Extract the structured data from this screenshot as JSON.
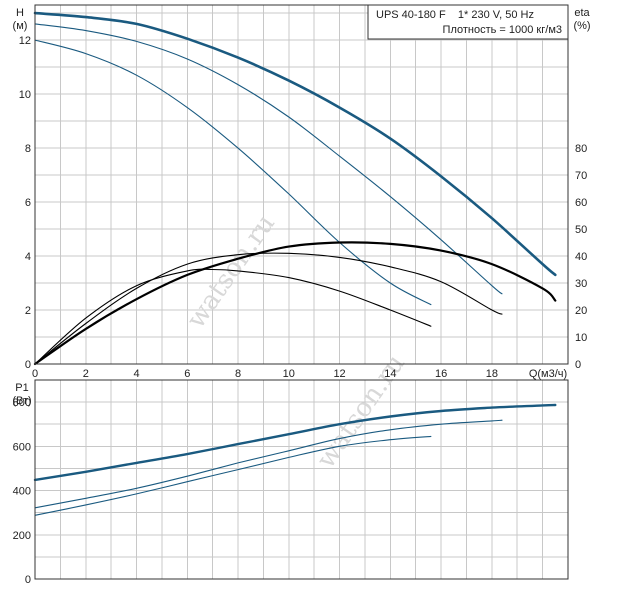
{
  "chart_data": [
    {
      "type": "line",
      "info_box": {
        "line1": "UPS 40-180 F    1* 230 V, 50 Hz",
        "line2": "Плотность = 1000 кг/м3"
      },
      "x_axis": {
        "label": "Q(м3/ч)",
        "range": [
          0,
          21
        ],
        "ticks": [
          0,
          2,
          4,
          6,
          8,
          10,
          12,
          14,
          16,
          18
        ]
      },
      "y_left": {
        "label_line1": "H",
        "label_line2": "(м)",
        "range": [
          0,
          13.3
        ],
        "ticks": [
          0,
          2,
          4,
          6,
          8,
          10,
          12
        ]
      },
      "y_right": {
        "label_line1": "eta",
        "label_line2": "(%)",
        "range": [
          0,
          133
        ],
        "ticks": [
          0,
          10,
          20,
          30,
          40,
          50,
          60,
          70,
          80
        ]
      },
      "grid": true,
      "series": [
        {
          "kind": "head",
          "axis": "left",
          "color": "#1a5a80",
          "width": 2.6,
          "x": [
            0,
            2,
            4,
            6,
            8,
            10,
            12,
            14,
            16,
            18,
            20,
            20.5
          ],
          "y": [
            13.0,
            12.85,
            12.6,
            12.05,
            11.35,
            10.5,
            9.5,
            8.35,
            6.95,
            5.4,
            3.7,
            3.3
          ]
        },
        {
          "kind": "head",
          "axis": "left",
          "color": "#1a5a80",
          "width": 1.1,
          "x": [
            0,
            2,
            4,
            6,
            8,
            10,
            12,
            14,
            16,
            18,
            18.4
          ],
          "y": [
            12.6,
            12.35,
            11.95,
            11.3,
            10.35,
            9.15,
            7.7,
            6.2,
            4.6,
            2.9,
            2.6
          ]
        },
        {
          "kind": "head",
          "axis": "left",
          "color": "#1a5a80",
          "width": 1.1,
          "x": [
            0,
            2,
            4,
            6,
            8,
            10,
            12,
            14,
            15.6
          ],
          "y": [
            12.0,
            11.5,
            10.7,
            9.5,
            8.0,
            6.3,
            4.5,
            3.0,
            2.2
          ]
        },
        {
          "kind": "efficiency",
          "axis": "right",
          "color": "#000000",
          "width": 2.2,
          "x": [
            0,
            2,
            4,
            6,
            8,
            10,
            12,
            14,
            16,
            18,
            20,
            20.5
          ],
          "y": [
            0,
            13,
            24,
            33,
            39,
            43.5,
            45,
            44.5,
            42,
            37,
            28,
            23.5
          ]
        },
        {
          "kind": "efficiency",
          "axis": "right",
          "color": "#000000",
          "width": 1.1,
          "x": [
            0,
            2,
            4,
            6,
            8,
            10,
            12,
            14,
            16,
            18,
            18.4
          ],
          "y": [
            0,
            15,
            28,
            37,
            40.5,
            41,
            39.5,
            36,
            30.5,
            20,
            18.5
          ]
        },
        {
          "kind": "efficiency",
          "axis": "right",
          "color": "#000000",
          "width": 1.1,
          "x": [
            0,
            2,
            4,
            6,
            7,
            8,
            10,
            12,
            14,
            15.6
          ],
          "y": [
            0,
            17,
            29,
            34.5,
            35,
            34.5,
            32,
            27,
            20,
            14
          ]
        }
      ]
    },
    {
      "type": "line",
      "x_axis": {
        "range": [
          0,
          21
        ]
      },
      "y_left": {
        "label_line1": "P1",
        "label_line2": "(Вт)",
        "range": [
          0,
          900
        ],
        "ticks": [
          0,
          200,
          400,
          600,
          800
        ]
      },
      "grid": true,
      "series": [
        {
          "kind": "power",
          "color": "#1a5a80",
          "width": 2.4,
          "x": [
            0,
            2,
            4,
            6,
            8,
            10,
            12,
            14,
            16,
            18,
            20,
            20.5
          ],
          "y": [
            448,
            485,
            525,
            565,
            610,
            655,
            700,
            735,
            760,
            775,
            785,
            787
          ]
        },
        {
          "kind": "power",
          "color": "#1a5a80",
          "width": 1.1,
          "x": [
            0,
            2,
            4,
            6,
            8,
            10,
            12,
            14,
            16,
            18,
            18.4
          ],
          "y": [
            322,
            365,
            410,
            465,
            525,
            580,
            635,
            675,
            700,
            715,
            718
          ]
        },
        {
          "kind": "power",
          "color": "#1a5a80",
          "width": 1.1,
          "x": [
            0,
            2,
            4,
            6,
            8,
            10,
            12,
            14,
            15.6
          ],
          "y": [
            288,
            335,
            385,
            440,
            495,
            550,
            600,
            630,
            645
          ]
        }
      ]
    }
  ],
  "watermark": "watson.ru"
}
